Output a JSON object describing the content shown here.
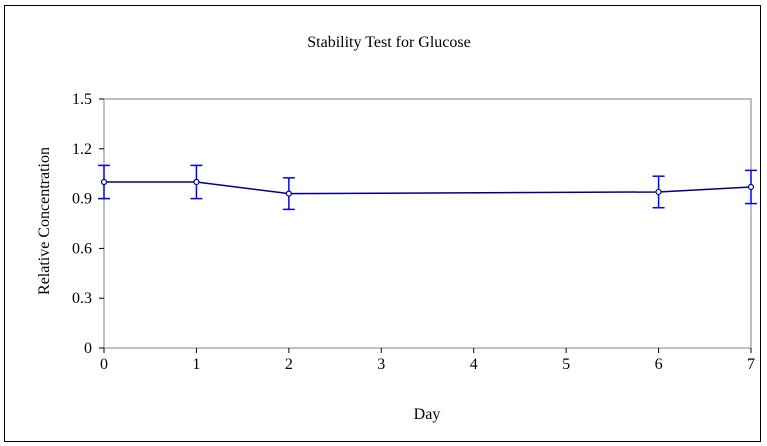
{
  "chart_data": {
    "type": "line",
    "title": "Stability Test for Glucose",
    "xlabel": "Day",
    "ylabel": "Relative Concentration",
    "xlim": [
      0,
      7
    ],
    "ylim": [
      0,
      1.5
    ],
    "x_ticks": [
      "0",
      "1",
      "2",
      "3",
      "4",
      "5",
      "6",
      "7"
    ],
    "y_ticks": [
      "0",
      "0.3",
      "0.6",
      "0.9",
      "1.2",
      "1.5"
    ],
    "grid": false,
    "legend": "none",
    "series": [
      {
        "points": [
          {
            "x": 0,
            "y": 1.0,
            "err": 0.1
          },
          {
            "x": 1,
            "y": 1.0,
            "err": 0.1
          },
          {
            "x": 2,
            "y": 0.93,
            "err": 0.095
          },
          {
            "x": 6,
            "y": 0.94,
            "err": 0.095
          },
          {
            "x": 7,
            "y": 0.97,
            "err": 0.1
          }
        ],
        "color": "#00008b",
        "error_bar_color": "#0000ff"
      }
    ]
  }
}
